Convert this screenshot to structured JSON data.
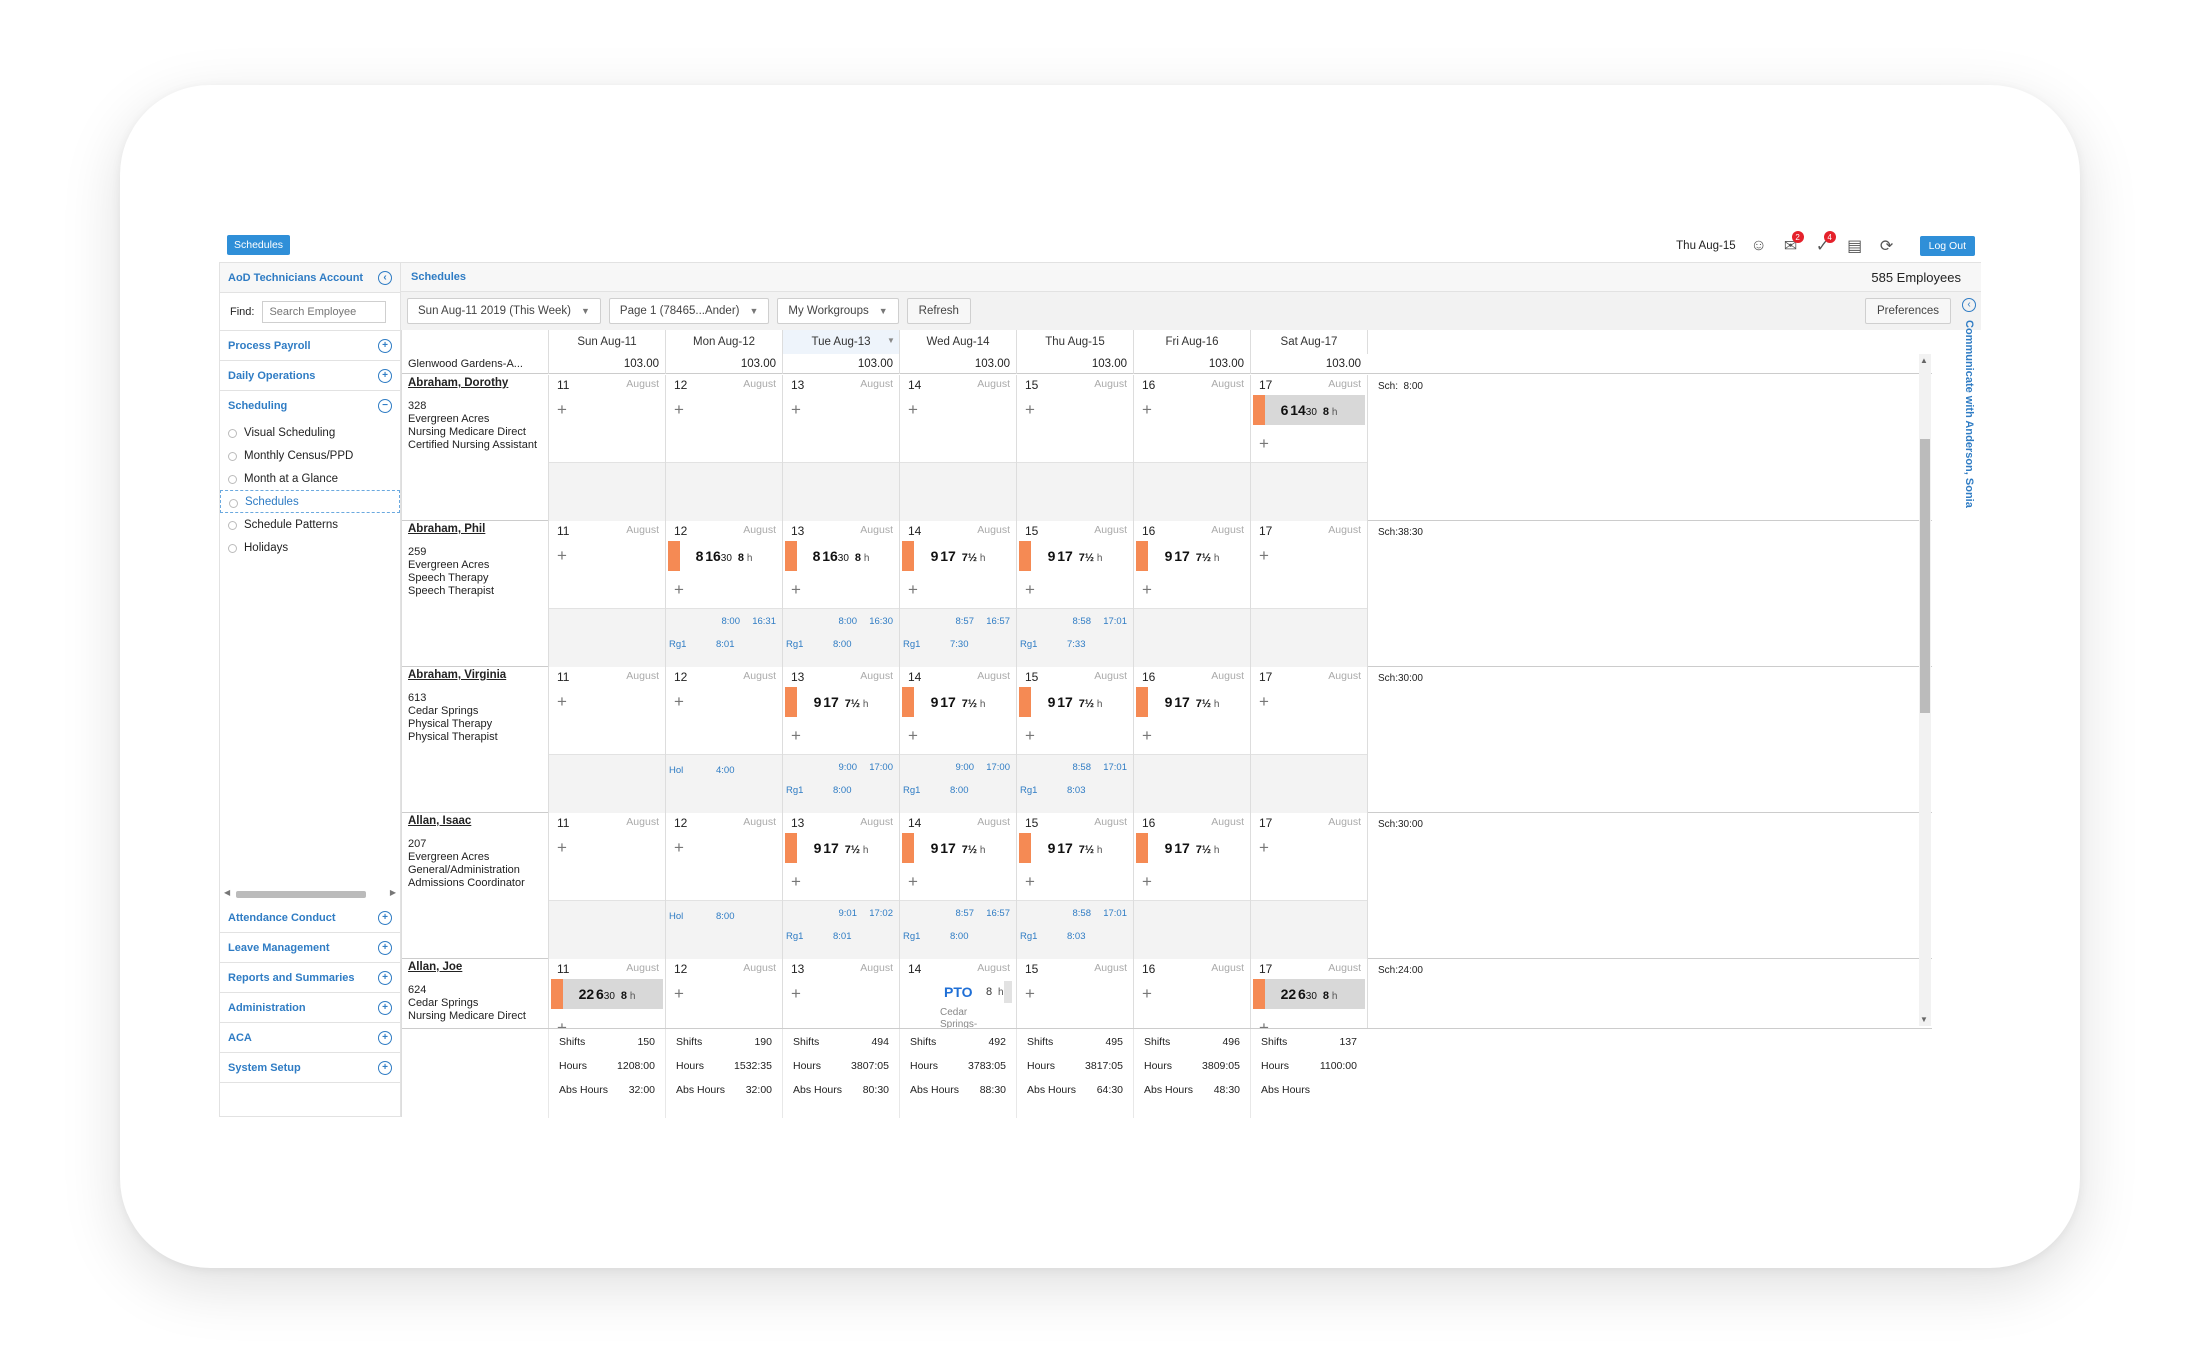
{
  "topbar": {
    "tab_label": "Schedules",
    "date": "Thu Aug-15",
    "badge_messages": "2",
    "badge_tasks": "4",
    "logout_label": "Log Out"
  },
  "sidebar": {
    "account": "AoD Technicians Account",
    "find_label": "Find:",
    "search_placeholder": "Search Employee",
    "top_items": [
      "Process Payroll",
      "Daily Operations",
      "Scheduling"
    ],
    "sub_items": [
      "Visual Scheduling",
      "Monthly Census/PPD",
      "Month at a Glance",
      "Schedules",
      "Schedule Patterns",
      "Holidays"
    ],
    "bottom_items": [
      "Attendance Conduct",
      "Leave Management",
      "Reports and Summaries",
      "Administration",
      "ACA",
      "System Setup"
    ]
  },
  "main": {
    "breadcrumb": "Schedules",
    "employee_count": "585 Employees",
    "week_select": "Sun Aug-11 2019 (This Week)",
    "page_select": "Page 1 (78465...Ander)",
    "workgroup_select": "My Workgroups",
    "refresh_label": "Refresh",
    "preferences_label": "Preferences",
    "side_tab": "Communicate with Anderson, Sonia"
  },
  "grid": {
    "days": [
      "Sun Aug-11",
      "Mon Aug-12",
      "Tue Aug-13",
      "Wed Aug-14",
      "Thu Aug-15",
      "Fri Aug-16",
      "Sat Aug-17"
    ],
    "location": "Glenwood Gardens-A...",
    "day_totals": [
      "103.00",
      "103.00",
      "103.00",
      "103.00",
      "103.00",
      "103.00",
      "103.00"
    ],
    "month_label": "August",
    "sch_label": "Sch:",
    "employees": [
      {
        "name": "Abraham, Dorothy",
        "id": "328",
        "lines": [
          "Evergreen Acres",
          "Nursing Medicare Direct",
          "Certified Nursing Assistant"
        ],
        "sch": "8:00",
        "days": [
          {
            "n": "11"
          },
          {
            "n": "12"
          },
          {
            "n": "13"
          },
          {
            "n": "14"
          },
          {
            "n": "15"
          },
          {
            "n": "16"
          },
          {
            "n": "17",
            "shift": {
              "s": "6",
              "e": "14",
              "m": "30",
              "hrs": "8",
              "gray": true
            }
          }
        ]
      },
      {
        "name": "Abraham, Phil",
        "id": "259",
        "lines": [
          "Evergreen Acres",
          "Speech Therapy",
          "Speech Therapist"
        ],
        "sch": "38:30",
        "days": [
          {
            "n": "11"
          },
          {
            "n": "12",
            "shift": {
              "s": "8",
              "e": "16",
              "m": "30",
              "hrs": "8"
            },
            "low": {
              "in": "8:00",
              "out": "16:31",
              "code": "Rg1",
              "val": "8:01"
            }
          },
          {
            "n": "13",
            "shift": {
              "s": "8",
              "e": "16",
              "m": "30",
              "hrs": "8"
            },
            "low": {
              "in": "8:00",
              "out": "16:30",
              "code": "Rg1",
              "val": "8:00"
            }
          },
          {
            "n": "14",
            "shift": {
              "s": "9",
              "e": "17",
              "m": "",
              "hrs": "7½"
            },
            "low": {
              "in": "8:57",
              "out": "16:57",
              "code": "Rg1",
              "val": "7:30"
            }
          },
          {
            "n": "15",
            "shift": {
              "s": "9",
              "e": "17",
              "m": "",
              "hrs": "7½"
            },
            "low": {
              "in": "8:58",
              "out": "17:01",
              "code": "Rg1",
              "val": "7:33"
            }
          },
          {
            "n": "16",
            "shift": {
              "s": "9",
              "e": "17",
              "m": "",
              "hrs": "7½"
            }
          },
          {
            "n": "17"
          }
        ]
      },
      {
        "name": "Abraham, Virginia",
        "id": "613",
        "lines": [
          "Cedar Springs",
          "Physical Therapy",
          "Physical Therapist"
        ],
        "sch": "30:00",
        "days": [
          {
            "n": "11"
          },
          {
            "n": "12",
            "low": {
              "code2": "Hol",
              "val2": "4:00"
            }
          },
          {
            "n": "13",
            "shift": {
              "s": "9",
              "e": "17",
              "m": "",
              "hrs": "7½"
            },
            "low": {
              "in": "9:00",
              "out": "17:00",
              "code": "Rg1",
              "val": "8:00"
            }
          },
          {
            "n": "14",
            "shift": {
              "s": "9",
              "e": "17",
              "m": "",
              "hrs": "7½"
            },
            "low": {
              "in": "9:00",
              "out": "17:00",
              "code": "Rg1",
              "val": "8:00"
            }
          },
          {
            "n": "15",
            "shift": {
              "s": "9",
              "e": "17",
              "m": "",
              "hrs": "7½"
            },
            "low": {
              "in": "8:58",
              "out": "17:01",
              "code": "Rg1",
              "val": "8:03"
            }
          },
          {
            "n": "16",
            "shift": {
              "s": "9",
              "e": "17",
              "m": "",
              "hrs": "7½"
            }
          },
          {
            "n": "17"
          }
        ]
      },
      {
        "name": "Allan, Isaac",
        "id": "207",
        "lines": [
          "Evergreen Acres",
          "General/Administration",
          "Admissions Coordinator"
        ],
        "sch": "30:00",
        "days": [
          {
            "n": "11"
          },
          {
            "n": "12",
            "low": {
              "code2": "Hol",
              "val2": "8:00"
            }
          },
          {
            "n": "13",
            "shift": {
              "s": "9",
              "e": "17",
              "m": "",
              "hrs": "7½"
            },
            "low": {
              "in": "9:01",
              "out": "17:02",
              "code": "Rg1",
              "val": "8:01"
            }
          },
          {
            "n": "14",
            "shift": {
              "s": "9",
              "e": "17",
              "m": "",
              "hrs": "7½"
            },
            "low": {
              "in": "8:57",
              "out": "16:57",
              "code": "Rg1",
              "val": "8:00"
            }
          },
          {
            "n": "15",
            "shift": {
              "s": "9",
              "e": "17",
              "m": "",
              "hrs": "7½"
            },
            "low": {
              "in": "8:58",
              "out": "17:01",
              "code": "Rg1",
              "val": "8:03"
            }
          },
          {
            "n": "16",
            "shift": {
              "s": "9",
              "e": "17",
              "m": "",
              "hrs": "7½"
            }
          },
          {
            "n": "17"
          }
        ]
      },
      {
        "name": "Allan, Joe",
        "id": "624",
        "lines": [
          "Cedar Springs",
          "Nursing Medicare Direct"
        ],
        "sch": "24:00",
        "days": [
          {
            "n": "11",
            "shift": {
              "s": "22",
              "e": "6",
              "m": "30",
              "hrs": "8",
              "gray": true
            }
          },
          {
            "n": "12"
          },
          {
            "n": "13"
          },
          {
            "n": "14",
            "pto": {
              "label": "PTO",
              "hrs": "8",
              "loc1": "Cedar",
              "loc2": "Springs-"
            }
          },
          {
            "n": "15"
          },
          {
            "n": "16"
          },
          {
            "n": "17",
            "shift": {
              "s": "22",
              "e": "6",
              "m": "30",
              "hrs": "8",
              "gray": true
            }
          }
        ]
      }
    ],
    "summary_labels": [
      "Shifts",
      "Hours",
      "Abs Hours"
    ],
    "summary": [
      {
        "shifts": "150",
        "hours": "1208:00",
        "abs": "32:00"
      },
      {
        "shifts": "190",
        "hours": "1532:35",
        "abs": "32:00"
      },
      {
        "shifts": "494",
        "hours": "3807:05",
        "abs": "80:30"
      },
      {
        "shifts": "492",
        "hours": "3783:05",
        "abs": "88:30"
      },
      {
        "shifts": "495",
        "hours": "3817:05",
        "abs": "64:30"
      },
      {
        "shifts": "496",
        "hours": "3809:05",
        "abs": "48:30"
      },
      {
        "shifts": "137",
        "hours": "1100:00",
        "abs": ""
      }
    ]
  },
  "colors": {
    "accent": "#2f8fd8",
    "shift_bar": "#f58a54",
    "link": "#2f7cc4"
  }
}
